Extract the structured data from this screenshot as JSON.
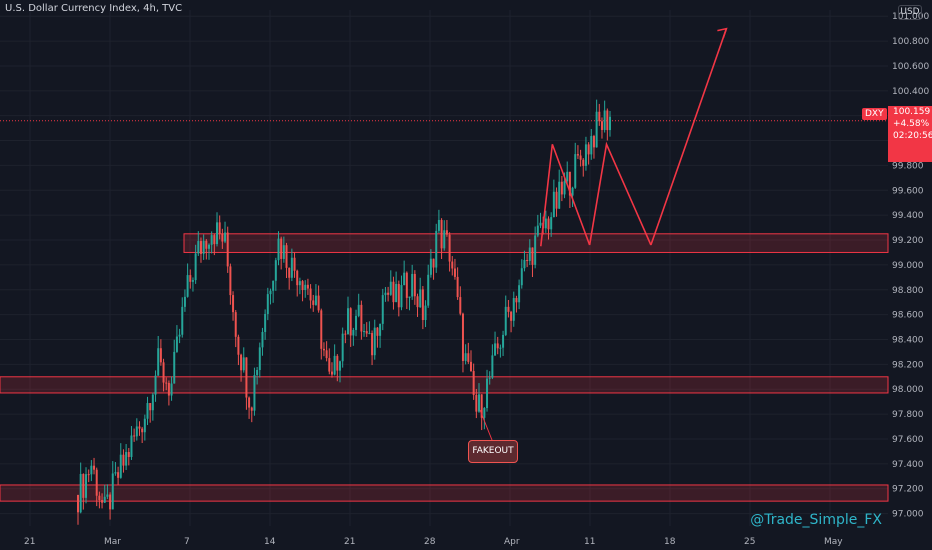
{
  "header": {
    "title": "U.S. Dollar Currency Index, 4h, TVC",
    "currency": "USD"
  },
  "watermark": "@Trade_Simple_FX",
  "annotation": {
    "label": "FAKEOUT"
  },
  "price_badge": {
    "symbol": "DXY",
    "price": "100.159",
    "change": "+4.58%",
    "countdown": "02:20:56"
  },
  "colors": {
    "bg": "#131722",
    "up": "#26a69a",
    "down": "#ef5350",
    "zone": "#f23645"
  },
  "chart_data": {
    "type": "candlestick",
    "x_ticks": [
      "21",
      "Mar",
      "7",
      "14",
      "21",
      "28",
      "Apr",
      "11",
      "18",
      "25",
      "May"
    ],
    "y_ticks": [
      "97.000",
      "97.200",
      "97.400",
      "97.600",
      "97.800",
      "98.000",
      "98.200",
      "98.400",
      "98.600",
      "98.800",
      "99.000",
      "99.200",
      "99.400",
      "99.600",
      "99.800",
      "100.000",
      "100.200",
      "100.400",
      "100.600",
      "100.800",
      "101.000"
    ],
    "ylim": [
      96.9,
      101.05
    ],
    "zones": [
      {
        "low": 97.1,
        "high": 97.23
      },
      {
        "low": 97.97,
        "high": 98.1
      },
      {
        "low": 99.1,
        "high": 99.25
      }
    ],
    "path_segments": [
      {
        "x": [
          0.609,
          0.622,
          0.664
        ],
        "y": [
          99.15,
          99.97,
          99.16
        ]
      },
      {
        "x": [
          0.664,
          0.683,
          0.733
        ],
        "y": [
          99.16,
          99.97,
          99.16
        ]
      },
      {
        "x": [
          0.733,
          0.818
        ],
        "y": [
          99.16,
          100.9
        ]
      }
    ],
    "price_line": 100.159,
    "candle_seed": [
      97.15,
      97.4,
      97.0,
      97.3,
      97.55,
      97.8,
      98.2,
      98.0,
      98.7,
      99.1,
      99.3,
      99.2,
      98.4,
      97.9,
      98.6,
      99.2,
      99.0,
      98.9,
      98.6,
      98.0,
      98.5,
      98.6,
      98.3,
      98.8,
      98.7,
      98.9,
      98.6,
      99.3,
      99.1,
      98.3,
      97.8,
      98.1,
      98.5,
      98.8,
      99.1,
      99.3,
      99.5,
      99.7,
      99.9,
      100.1,
      100.2
    ]
  }
}
